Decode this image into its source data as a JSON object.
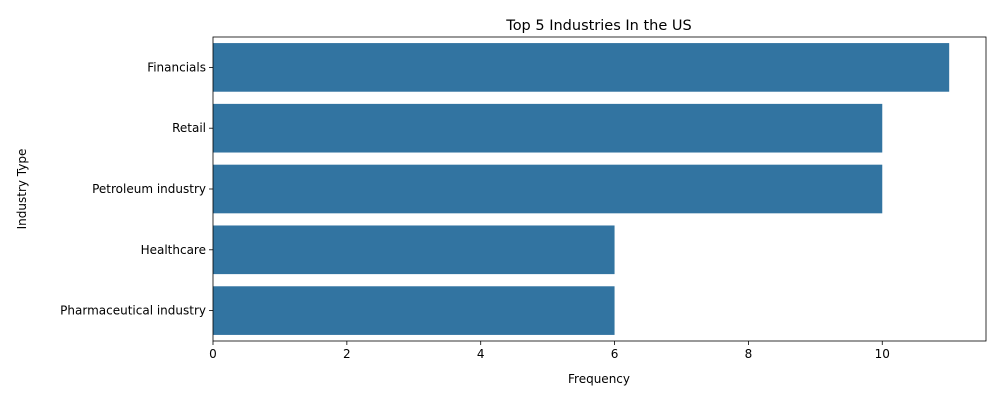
{
  "chart_data": {
    "type": "bar",
    "orientation": "horizontal",
    "title": "Top 5 Industries In the US",
    "xlabel": "Frequency",
    "ylabel": "Industry Type",
    "categories": [
      "Financials",
      "Retail",
      "Petroleum industry",
      "Healthcare",
      "Pharmaceutical industry"
    ],
    "values": [
      11,
      10,
      10,
      6,
      6
    ],
    "xlim": [
      0,
      11.55
    ],
    "xticks": [
      0,
      2,
      4,
      6,
      8,
      10
    ],
    "grid": false,
    "bar_color": "#3274a1"
  }
}
